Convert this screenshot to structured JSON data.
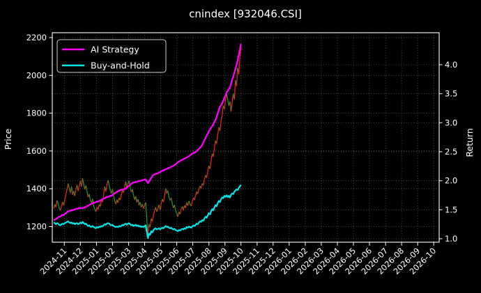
{
  "title": "cnindex [932046.CSI]",
  "figure": {
    "background": "#000000",
    "text_color": "#ffffff",
    "grid_color": "rgba(255,255,255,0.38)"
  },
  "chart_data": {
    "type": "line",
    "subtype": "strategy-backtest with twin y-axes; index price drawn as up/down colored segments",
    "title": "cnindex [932046.CSI]",
    "legend_position": "upper left",
    "grid": true,
    "legend": [
      {
        "name": "AI Strategy",
        "color": "#ff00ff"
      },
      {
        "name": "Buy-and-Hold",
        "color": "#00e5e5"
      }
    ],
    "left_axis": {
      "label": "Price",
      "ticks": [
        1200,
        1400,
        1600,
        1800,
        2000,
        2200
      ],
      "ylim": [
        1117,
        2226
      ]
    },
    "right_axis": {
      "label": "Return",
      "ticks": [
        1.0,
        1.5,
        2.0,
        2.5,
        3.0,
        3.5,
        4.0
      ],
      "ylim": [
        0.94,
        4.55
      ]
    },
    "x_axis": {
      "tick_rotation_deg": 45,
      "tick_labels": [
        "2024-11",
        "2024-12",
        "2025-01",
        "2025-02",
        "2025-03",
        "2025-04",
        "2025-05",
        "2025-06",
        "2025-07",
        "2025-08",
        "2025-09",
        "2025-10",
        "2025-11",
        "2025-12",
        "2026-01",
        "2026-02",
        "2026-03",
        "2026-04",
        "2026-05",
        "2026-06",
        "2026-07",
        "2026-08",
        "2026-09",
        "2026-10"
      ]
    },
    "data_x_span": {
      "start_tick_offset": -0.66,
      "end_tick_offset": 11.0,
      "note": "data runs from mid-Oct-2024 to Oct-2025; axis extends empty to 2026-10"
    },
    "series": {
      "price_candles": {
        "axis": "left",
        "up_color": "#ee2222",
        "down_color": "#1f9d1f",
        "close": [
          1295,
          1318,
          1302,
          1338,
          1320,
          1296,
          1285,
          1308,
          1330,
          1312,
          1342,
          1370,
          1398,
          1428,
          1402,
          1378,
          1412,
          1368,
          1390,
          1362,
          1395,
          1420,
          1388,
          1415,
          1442,
          1410,
          1456,
          1424,
          1395,
          1418,
          1386,
          1355,
          1372,
          1340,
          1326,
          1348,
          1310,
          1292,
          1278,
          1302,
          1288,
          1318,
          1306,
          1342,
          1330,
          1365,
          1412,
          1385,
          1420,
          1446,
          1418,
          1392,
          1375,
          1398,
          1362,
          1338,
          1318,
          1342,
          1325,
          1352,
          1340,
          1368,
          1392,
          1380,
          1412,
          1438,
          1405,
          1428,
          1442,
          1410,
          1382,
          1398,
          1365,
          1342,
          1360,
          1328,
          1345,
          1312,
          1330,
          1302,
          1318,
          1295,
          1312,
          1328,
          1235,
          1158,
          1212,
          1196,
          1242,
          1228,
          1262,
          1285,
          1302,
          1278,
          1295,
          1315,
          1288,
          1322,
          1345,
          1330,
          1362,
          1402,
          1375,
          1390,
          1355,
          1338,
          1352,
          1320,
          1298,
          1315,
          1282,
          1270,
          1252,
          1278,
          1265,
          1292,
          1305,
          1286,
          1312,
          1298,
          1328,
          1310,
          1335,
          1318,
          1308,
          1332,
          1352,
          1340,
          1365,
          1385,
          1372,
          1398,
          1415,
          1402,
          1428,
          1418,
          1448,
          1472,
          1458,
          1495,
          1522,
          1505,
          1548,
          1585,
          1570,
          1618,
          1655,
          1638,
          1688,
          1725,
          1705,
          1758,
          1792,
          1840,
          1822,
          1868,
          1902,
          1872,
          1838,
          1862,
          1808,
          1855,
          1905,
          1872,
          1975,
          1942,
          2042,
          2005,
          2098,
          2148
        ]
      },
      "ai_strategy": {
        "axis": "right",
        "color": "#ff00ff",
        "values": [
          1.32,
          1.33,
          1.34,
          1.35,
          1.37,
          1.38,
          1.38,
          1.4,
          1.41,
          1.41,
          1.43,
          1.44,
          1.46,
          1.47,
          1.48,
          1.48,
          1.49,
          1.49,
          1.5,
          1.51,
          1.51,
          1.52,
          1.52,
          1.53,
          1.53,
          1.53,
          1.53,
          1.53,
          1.54,
          1.55,
          1.56,
          1.57,
          1.58,
          1.59,
          1.6,
          1.61,
          1.62,
          1.62,
          1.63,
          1.64,
          1.64,
          1.65,
          1.66,
          1.67,
          1.68,
          1.69,
          1.7,
          1.71,
          1.72,
          1.72,
          1.73,
          1.74,
          1.74,
          1.75,
          1.77,
          1.78,
          1.8,
          1.81,
          1.82,
          1.83,
          1.84,
          1.84,
          1.85,
          1.85,
          1.86,
          1.86,
          1.88,
          1.9,
          1.91,
          1.93,
          1.95,
          1.96,
          1.97,
          1.97,
          1.98,
          1.98,
          1.99,
          1.99,
          2.0,
          2.0,
          2.01,
          2.01,
          2.02,
          2.02,
          1.99,
          1.96,
          1.98,
          2.02,
          2.05,
          2.08,
          2.1,
          2.11,
          2.12,
          2.12,
          2.13,
          2.14,
          2.15,
          2.16,
          2.17,
          2.18,
          2.19,
          2.2,
          2.2,
          2.21,
          2.22,
          2.23,
          2.24,
          2.25,
          2.26,
          2.27,
          2.28,
          2.3,
          2.32,
          2.33,
          2.34,
          2.35,
          2.36,
          2.37,
          2.38,
          2.39,
          2.4,
          2.41,
          2.42,
          2.44,
          2.45,
          2.47,
          2.48,
          2.48,
          2.49,
          2.51,
          2.53,
          2.55,
          2.57,
          2.59,
          2.62,
          2.66,
          2.7,
          2.74,
          2.78,
          2.81,
          2.85,
          2.88,
          2.91,
          2.94,
          2.97,
          3.01,
          3.05,
          3.1,
          3.16,
          3.22,
          3.27,
          3.3,
          3.33,
          3.38,
          3.43,
          3.47,
          3.52,
          3.55,
          3.58,
          3.6,
          3.67,
          3.74,
          3.8,
          3.86,
          3.93,
          4.0,
          4.08,
          4.17,
          4.26,
          4.36
        ]
      },
      "buy_and_hold": {
        "axis": "right",
        "color": "#00e5e5",
        "values": [
          1.28,
          1.27,
          1.25,
          1.27,
          1.26,
          1.24,
          1.23,
          1.25,
          1.26,
          1.25,
          1.27,
          1.28,
          1.29,
          1.3,
          1.28,
          1.27,
          1.28,
          1.26,
          1.27,
          1.25,
          1.26,
          1.27,
          1.25,
          1.26,
          1.28,
          1.26,
          1.29,
          1.27,
          1.25,
          1.26,
          1.24,
          1.22,
          1.23,
          1.21,
          1.2,
          1.22,
          1.2,
          1.19,
          1.18,
          1.2,
          1.19,
          1.21,
          1.2,
          1.22,
          1.21,
          1.23,
          1.25,
          1.24,
          1.26,
          1.27,
          1.26,
          1.24,
          1.23,
          1.24,
          1.22,
          1.21,
          1.2,
          1.21,
          1.2,
          1.22,
          1.21,
          1.22,
          1.24,
          1.23,
          1.25,
          1.26,
          1.24,
          1.26,
          1.27,
          1.25,
          1.23,
          1.24,
          1.22,
          1.23,
          1.24,
          1.22,
          1.23,
          1.21,
          1.22,
          1.2,
          1.21,
          1.2,
          1.22,
          1.23,
          1.12,
          1.01,
          1.09,
          1.07,
          1.13,
          1.11,
          1.15,
          1.17,
          1.18,
          1.16,
          1.17,
          1.18,
          1.16,
          1.18,
          1.19,
          1.18,
          1.2,
          1.22,
          1.2,
          1.21,
          1.19,
          1.18,
          1.19,
          1.17,
          1.16,
          1.17,
          1.15,
          1.14,
          1.13,
          1.15,
          1.14,
          1.16,
          1.17,
          1.16,
          1.18,
          1.17,
          1.2,
          1.19,
          1.21,
          1.2,
          1.19,
          1.21,
          1.23,
          1.22,
          1.24,
          1.26,
          1.25,
          1.28,
          1.3,
          1.29,
          1.32,
          1.31,
          1.35,
          1.38,
          1.36,
          1.4,
          1.44,
          1.42,
          1.47,
          1.51,
          1.49,
          1.54,
          1.58,
          1.56,
          1.61,
          1.65,
          1.63,
          1.68,
          1.71,
          1.7,
          1.74,
          1.72,
          1.75,
          1.72,
          1.74,
          1.71,
          1.76,
          1.78,
          1.77,
          1.81,
          1.83,
          1.85,
          1.84,
          1.88,
          1.9,
          1.93
        ]
      }
    }
  }
}
